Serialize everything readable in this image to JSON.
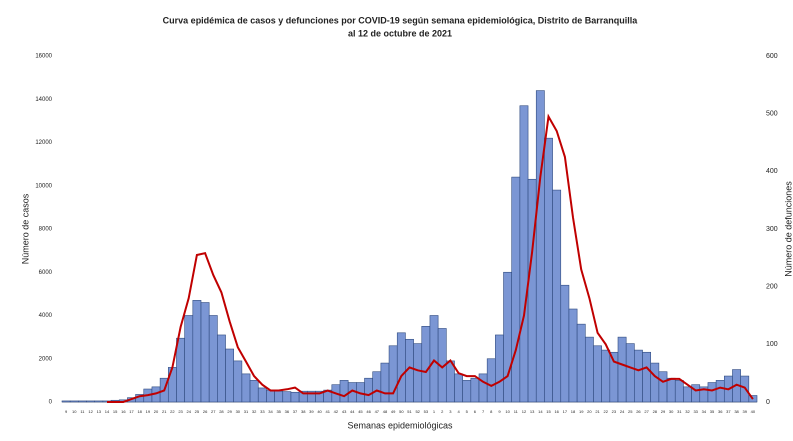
{
  "chart_data": {
    "type": "bar-line",
    "title": "Curva epidémica de casos y defunciones por COVID-19 según semana epidemiológica, Distrito de Barranquilla",
    "subtitle": "al 12 de octubre de 2021",
    "y_label": "Número de casos",
    "y2_label": "Número de defunciones",
    "x_label": "Semanas epidemiológicas",
    "categories": [
      "9",
      "10",
      "11",
      "12",
      "13",
      "14",
      "15",
      "16",
      "17",
      "18",
      "19",
      "20",
      "21",
      "22",
      "23",
      "24",
      "25",
      "26",
      "27",
      "28",
      "29",
      "30",
      "31",
      "32",
      "33",
      "34",
      "35",
      "36",
      "37",
      "38",
      "39",
      "40",
      "41",
      "42",
      "43",
      "44",
      "45",
      "46",
      "47",
      "48",
      "49",
      "50",
      "51",
      "52",
      "53",
      "1",
      "2",
      "3",
      "4",
      "5",
      "6",
      "7",
      "8",
      "9",
      "10",
      "11",
      "12",
      "13",
      "14",
      "15",
      "16",
      "17",
      "18",
      "19",
      "20",
      "21",
      "22",
      "23",
      "24",
      "25",
      "26",
      "27",
      "28",
      "29",
      "30",
      "31",
      "32",
      "33",
      "34",
      "35",
      "36",
      "37",
      "38",
      "39",
      "40"
    ],
    "series": [
      {
        "name": "Casos",
        "color": "#7b96d4",
        "axis": "y",
        "values": [
          50,
          50,
          50,
          50,
          50,
          50,
          80,
          100,
          200,
          350,
          600,
          700,
          1100,
          1600,
          2950,
          4000,
          4700,
          4600,
          4000,
          3100,
          2450,
          1900,
          1300,
          1000,
          650,
          550,
          500,
          480,
          450,
          500,
          500,
          500,
          550,
          800,
          1000,
          900,
          900,
          1100,
          1400,
          1800,
          2600,
          3200,
          2900,
          2700,
          3500,
          4000,
          3400,
          1900,
          1300,
          1000,
          1100,
          1300,
          2000,
          3100,
          6000,
          10400,
          13700,
          10300,
          14400,
          12200,
          9800,
          5400,
          4300,
          3600,
          3000,
          2600,
          2400,
          2300,
          3000,
          2700,
          2400,
          2300,
          1800,
          1400,
          1100,
          1000,
          700,
          800,
          700,
          900,
          1000,
          1200,
          1500,
          1200,
          300
        ]
      },
      {
        "name": "Defunciones",
        "color": "#c00000",
        "axis": "y2",
        "values": [
          null,
          null,
          null,
          null,
          null,
          0,
          0,
          0,
          5,
          10,
          12,
          15,
          20,
          60,
          130,
          180,
          255,
          258,
          220,
          190,
          140,
          95,
          70,
          45,
          30,
          20,
          20,
          22,
          25,
          15,
          15,
          15,
          20,
          15,
          10,
          20,
          15,
          12,
          20,
          15,
          15,
          45,
          60,
          55,
          52,
          72,
          60,
          72,
          50,
          45,
          45,
          35,
          28,
          35,
          45,
          90,
          150,
          260,
          390,
          495,
          470,
          425,
          320,
          230,
          180,
          120,
          100,
          70,
          65,
          60,
          55,
          60,
          45,
          35,
          40,
          40,
          30,
          20,
          22,
          20,
          25,
          22,
          30,
          25,
          5
        ]
      }
    ],
    "ylim": [
      0,
      16000
    ],
    "yticks": [
      0,
      2000,
      4000,
      6000,
      8000,
      10000,
      12000,
      14000,
      16000
    ],
    "y2lim": [
      0,
      600
    ],
    "y2ticks": [
      0,
      100,
      200,
      300,
      400,
      500,
      600
    ]
  }
}
